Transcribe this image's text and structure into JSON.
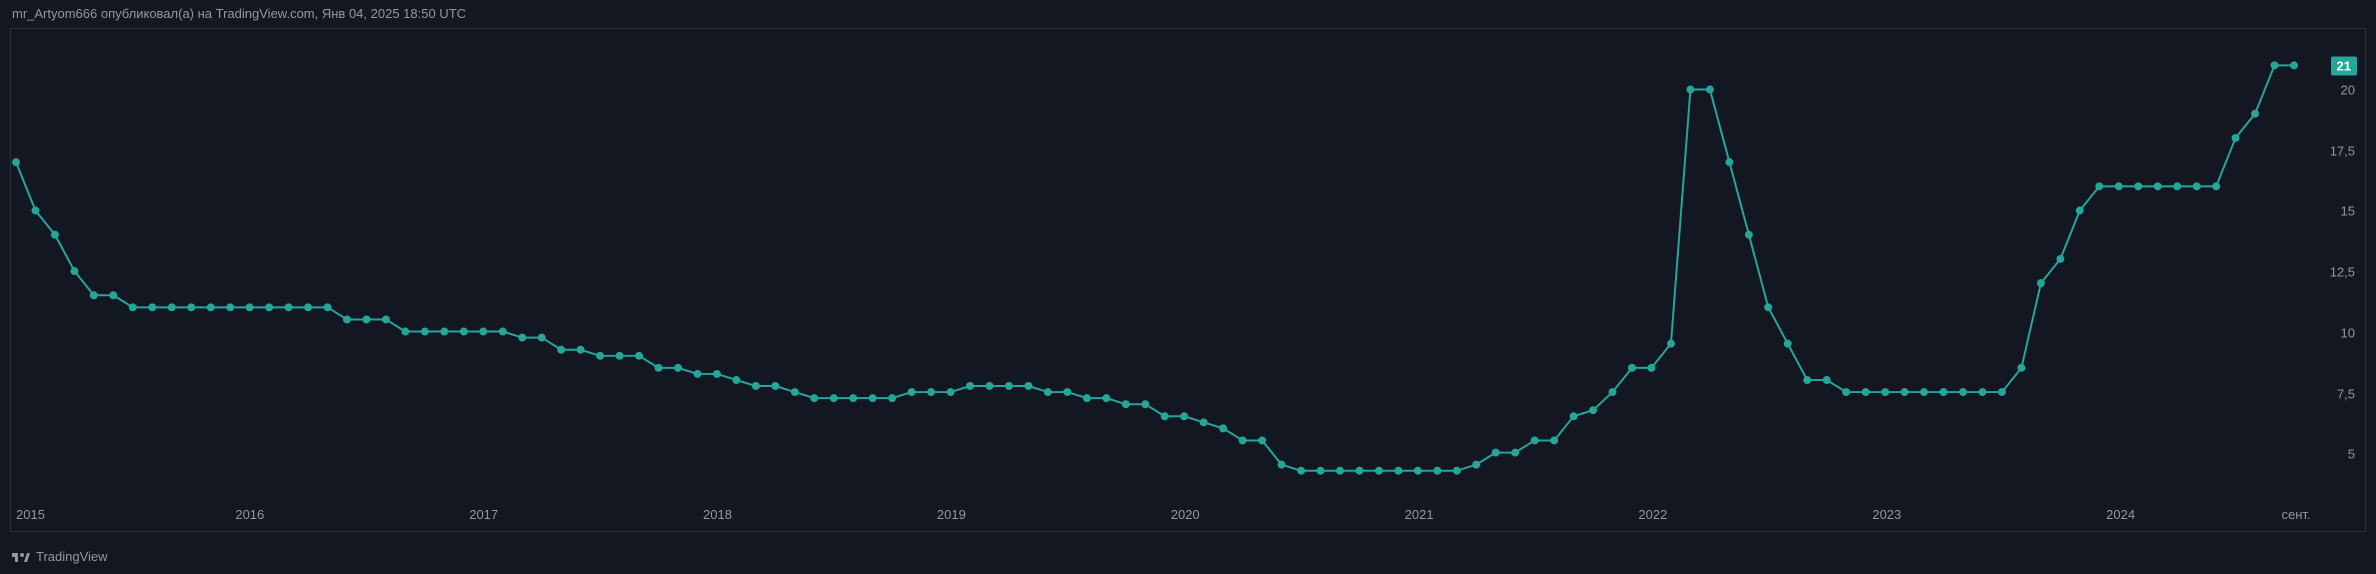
{
  "header": {
    "text": "mr_Artyom666 опубликовал(а) на TradingView.com, Янв 04, 2025 18:50 UTC"
  },
  "chart": {
    "type": "line",
    "background_color": "#131722",
    "border_color": "#2a2e39",
    "line_color": "#26a69a",
    "marker_color": "#26a69a",
    "line_width": 2,
    "marker_radius": 4,
    "text_color": "#9598a1",
    "tick_fontsize": 13,
    "ylim": [
      3,
      22.5
    ],
    "y_ticks": [
      5,
      7.5,
      10,
      12.5,
      15,
      17.5,
      20
    ],
    "y_tick_labels": [
      "5",
      "7,5",
      "10",
      "12,5",
      "15",
      "17,5",
      "20"
    ],
    "x_ticks": [
      0,
      12,
      24,
      36,
      48,
      60,
      72,
      84,
      96,
      108,
      117
    ],
    "x_tick_labels": [
      "2015",
      "2016",
      "2017",
      "2018",
      "2019",
      "2020",
      "2021",
      "2022",
      "2023",
      "2024",
      "сент."
    ],
    "current_value_label": "21",
    "badge_bg": "#26a69a",
    "badge_fg": "#ffffff",
    "values": [
      17.0,
      15.0,
      14.0,
      12.5,
      11.5,
      11.5,
      11.0,
      11.0,
      11.0,
      11.0,
      11.0,
      11.0,
      11.0,
      11.0,
      11.0,
      11.0,
      11.0,
      10.5,
      10.5,
      10.5,
      10.0,
      10.0,
      10.0,
      10.0,
      10.0,
      10.0,
      9.75,
      9.75,
      9.25,
      9.25,
      9.0,
      9.0,
      9.0,
      8.5,
      8.5,
      8.25,
      8.25,
      8.0,
      7.75,
      7.75,
      7.5,
      7.25,
      7.25,
      7.25,
      7.25,
      7.25,
      7.5,
      7.5,
      7.5,
      7.75,
      7.75,
      7.75,
      7.75,
      7.5,
      7.5,
      7.25,
      7.25,
      7.0,
      7.0,
      6.5,
      6.5,
      6.25,
      6.0,
      5.5,
      5.5,
      4.5,
      4.25,
      4.25,
      4.25,
      4.25,
      4.25,
      4.25,
      4.25,
      4.25,
      4.25,
      4.5,
      5.0,
      5.0,
      5.5,
      5.5,
      6.5,
      6.75,
      7.5,
      8.5,
      8.5,
      9.5,
      20.0,
      20.0,
      17.0,
      14.0,
      11.0,
      9.5,
      8.0,
      8.0,
      7.5,
      7.5,
      7.5,
      7.5,
      7.5,
      7.5,
      7.5,
      7.5,
      7.5,
      8.5,
      12.0,
      13.0,
      15.0,
      16.0,
      16.0,
      16.0,
      16.0,
      16.0,
      16.0,
      16.0,
      18.0,
      19.0,
      21.0,
      21.0
    ]
  },
  "footer": {
    "brand": "TradingView"
  }
}
